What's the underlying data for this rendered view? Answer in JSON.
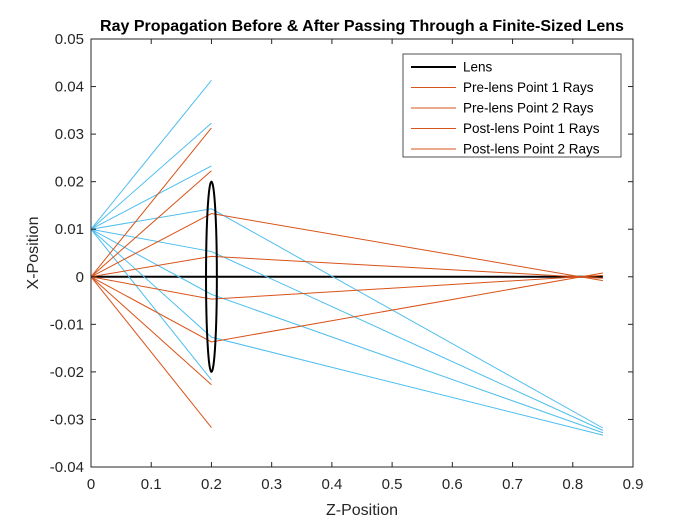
{
  "chart_data": {
    "type": "line",
    "title": "Ray Propagation Before & After Passing Through a Finite-Sized Lens",
    "xlabel": "Z-Position",
    "ylabel": "X-Position",
    "xlim": [
      0,
      0.9
    ],
    "ylim": [
      -0.04,
      0.05
    ],
    "x_ticks": [
      0,
      0.1,
      0.2,
      0.3,
      0.4,
      0.5,
      0.6,
      0.7,
      0.8,
      0.9
    ],
    "x_tick_labels": [
      "0",
      "0.1",
      "0.2",
      "0.3",
      "0.4",
      "0.5",
      "0.6",
      "0.7",
      "0.8",
      "0.9"
    ],
    "y_ticks": [
      -0.04,
      -0.03,
      -0.02,
      -0.01,
      0,
      0.01,
      0.02,
      0.03,
      0.04,
      0.05
    ],
    "y_tick_labels": [
      "-0.04",
      "-0.03",
      "-0.02",
      "-0.01",
      "0",
      "0.01",
      "0.02",
      "0.03",
      "0.04",
      "0.05"
    ],
    "grid": false,
    "legend_position": "top-right",
    "legend": [
      {
        "label": "Lens",
        "color": "#000000",
        "width": 2
      },
      {
        "label": "Pre-lens Point 1 Rays",
        "color": "#d95319",
        "width": 1
      },
      {
        "label": "Pre-lens Point 2 Rays",
        "color": "#d95319",
        "width": 1
      },
      {
        "label": "Post-lens Point 1 Rays",
        "color": "#d95319",
        "width": 1
      },
      {
        "label": "Post-lens Point 2 Rays",
        "color": "#d95319",
        "width": 1
      }
    ],
    "optical_axis": {
      "x": [
        0,
        0.85
      ],
      "y": [
        0,
        0
      ],
      "color": "#000000"
    },
    "lens": {
      "center": [
        0.2,
        0
      ],
      "half_width": 0.02,
      "half_height": 0.02,
      "color": "#000000"
    },
    "series": [
      {
        "color": "#4dbeee",
        "x": [
          0,
          0.2
        ],
        "y": [
          0.01,
          0.0413
        ]
      },
      {
        "color": "#4dbeee",
        "x": [
          0,
          0.2
        ],
        "y": [
          0.01,
          0.0323
        ]
      },
      {
        "color": "#4dbeee",
        "x": [
          0,
          0.2
        ],
        "y": [
          0.01,
          0.0233
        ]
      },
      {
        "color": "#4dbeee",
        "x": [
          0,
          0.2,
          0.85
        ],
        "y": [
          0.01,
          0.0143,
          -0.0318
        ]
      },
      {
        "color": "#4dbeee",
        "x": [
          0,
          0.2,
          0.85
        ],
        "y": [
          0.01,
          0.0053,
          -0.0323
        ]
      },
      {
        "color": "#4dbeee",
        "x": [
          0,
          0.2,
          0.85
        ],
        "y": [
          0.01,
          -0.0037,
          -0.0328
        ]
      },
      {
        "color": "#4dbeee",
        "x": [
          0,
          0.2,
          0.85
        ],
        "y": [
          0.01,
          -0.0127,
          -0.0333
        ]
      },
      {
        "color": "#4dbeee",
        "x": [
          0,
          0.2
        ],
        "y": [
          0.01,
          -0.0217
        ]
      },
      {
        "color": "#d95319",
        "x": [
          0,
          0.2
        ],
        "y": [
          0,
          0.0313
        ]
      },
      {
        "color": "#d95319",
        "x": [
          0,
          0.2
        ],
        "y": [
          0,
          0.0223
        ]
      },
      {
        "color": "#d95319",
        "x": [
          0,
          0.2,
          0.85
        ],
        "y": [
          0,
          0.0133,
          -0.0008
        ]
      },
      {
        "color": "#d95319",
        "x": [
          0,
          0.2,
          0.85
        ],
        "y": [
          0,
          0.0043,
          -0.0003
        ]
      },
      {
        "color": "#d95319",
        "x": [
          0,
          0.2,
          0.85
        ],
        "y": [
          0,
          -0.0047,
          0.0003
        ]
      },
      {
        "color": "#d95319",
        "x": [
          0,
          0.2,
          0.85
        ],
        "y": [
          0,
          -0.0137,
          0.0008
        ]
      },
      {
        "color": "#d95319",
        "x": [
          0,
          0.2
        ],
        "y": [
          0,
          -0.0227
        ]
      },
      {
        "color": "#d95319",
        "x": [
          0,
          0.2
        ],
        "y": [
          0,
          -0.0317
        ]
      }
    ]
  }
}
